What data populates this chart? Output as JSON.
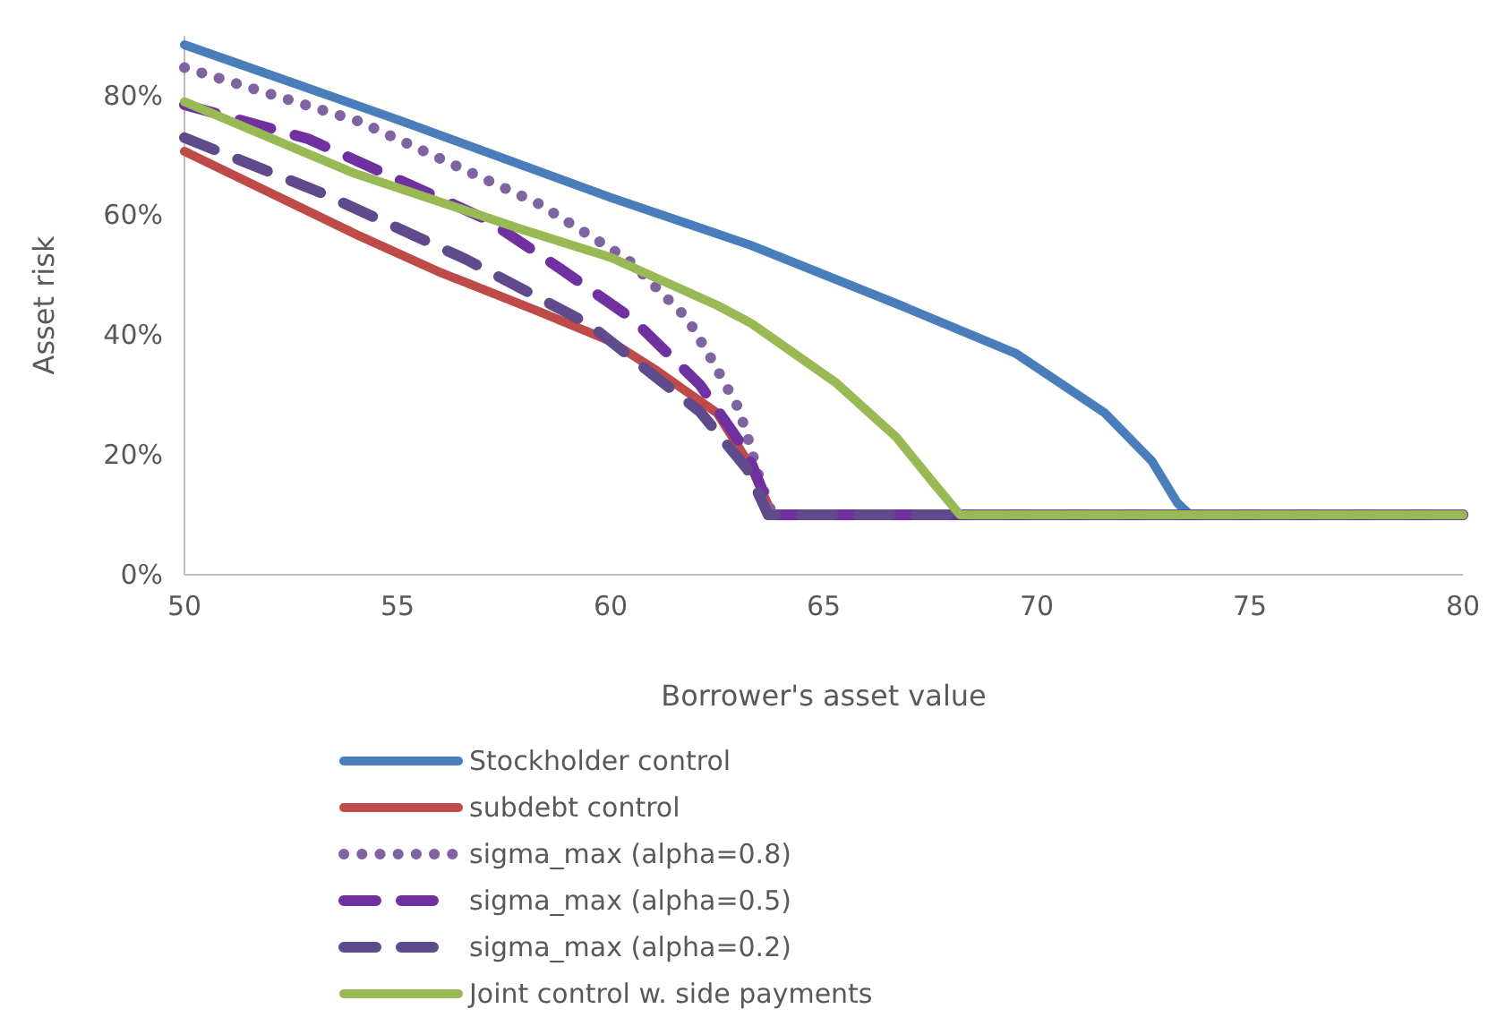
{
  "chart_data": {
    "type": "line",
    "xlabel": "Borrower's asset value",
    "ylabel": "Asset risk",
    "xlim": [
      50,
      80
    ],
    "xticks": [
      50,
      55,
      60,
      65,
      70,
      75,
      80
    ],
    "ylim": [
      0,
      90
    ],
    "yticks": [
      {
        "value": 0,
        "label": "0%"
      },
      {
        "value": 20,
        "label": "20%"
      },
      {
        "value": 40,
        "label": "40%"
      },
      {
        "value": 60,
        "label": "60%"
      },
      {
        "value": 80,
        "label": "80%"
      }
    ],
    "grid": false,
    "legend": "bottom",
    "marker": "none",
    "series": [
      {
        "name": "Stockholder control",
        "color": "#4a7ebb",
        "line_style": "solid",
        "x": [
          50,
          55,
          60,
          63.3,
          66.8,
          69.5,
          71.6,
          72.7,
          73.3,
          73.6,
          80
        ],
        "values": [
          88.5,
          76,
          63,
          55,
          45,
          37,
          27,
          19,
          12,
          10,
          10
        ]
      },
      {
        "name": "subdebt control",
        "color": "#be4b48",
        "line_style": "solid",
        "x": [
          50,
          54.1,
          56,
          58.3,
          60,
          61.1,
          62.5,
          63.3,
          63.8
        ],
        "values": [
          70.7,
          56.6,
          50.5,
          44,
          39,
          34,
          27,
          18,
          10
        ]
      },
      {
        "name": "sigma_max (alpha=0.8)",
        "color": "#8064a2",
        "line_style": "dotted",
        "x": [
          50,
          54.1,
          58.3,
          60.4,
          61.8,
          62.4,
          63,
          63.2,
          63.5,
          63.8,
          80
        ],
        "values": [
          84.7,
          75.7,
          62,
          52.7,
          42.8,
          35.6,
          27.8,
          23.4,
          15.9,
          10,
          10
        ]
      },
      {
        "name": "sigma_max (alpha=0.5)",
        "color": "#7030a0",
        "line_style": "dashed",
        "x": [
          50,
          52.9,
          57.1,
          58.8,
          60.5,
          62.1,
          63.2,
          63.8,
          80
        ],
        "values": [
          78.5,
          72.8,
          59.3,
          51.2,
          42.8,
          31.7,
          20.4,
          10,
          10
        ]
      },
      {
        "name": "sigma_max (alpha=0.2)",
        "color": "#5f4b8b",
        "line_style": "dashed",
        "x": [
          50,
          53.2,
          56.6,
          59.5,
          62.1,
          63.2,
          63.7,
          80
        ],
        "values": [
          73,
          63.8,
          52.7,
          41.8,
          27.2,
          17.7,
          10,
          10
        ]
      },
      {
        "name": "Joint control w. side payments",
        "color": "#98b954",
        "line_style": "solid",
        "x": [
          50,
          54,
          58,
          60,
          62.5,
          63.3,
          65.3,
          66.7,
          67.5,
          68.2,
          80
        ],
        "values": [
          79,
          67,
          57.5,
          53,
          45,
          42,
          32,
          23,
          16,
          10,
          10
        ]
      }
    ]
  }
}
